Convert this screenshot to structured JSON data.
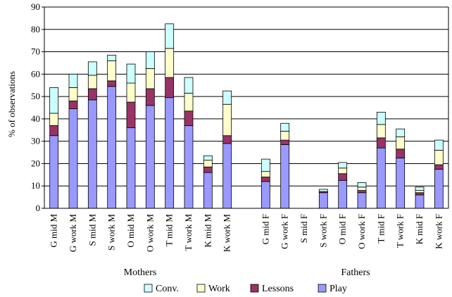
{
  "chart_data": {
    "type": "bar",
    "stacked": true,
    "ylabel": "% of observations",
    "ylim": [
      0,
      90
    ],
    "yticks": [
      0,
      10,
      20,
      30,
      40,
      50,
      60,
      70,
      80,
      90
    ],
    "grid": "horizontal",
    "legend_position": "bottom",
    "groups": [
      "Mothers",
      "Fathers"
    ],
    "categories": [
      "G mid M",
      "G work M",
      "S mid M",
      "S work M",
      "O mid M",
      "O work M",
      "T mid M",
      "T work M",
      "K mid M",
      "K work M",
      "",
      "G mid F",
      "G work F",
      "S mid F",
      "S work F",
      "O mid F",
      "O work F",
      "T mid F",
      "T work F",
      "K mid F",
      "K work F"
    ],
    "category_groups": [
      0,
      0,
      0,
      0,
      0,
      0,
      0,
      0,
      0,
      0,
      null,
      1,
      1,
      1,
      1,
      1,
      1,
      1,
      1,
      1,
      1
    ],
    "series": [
      {
        "name": "Play",
        "color": "#9999ff",
        "values": [
          32.5,
          44.5,
          48.5,
          54.5,
          36,
          46,
          49.5,
          37,
          16,
          29,
          null,
          12,
          28.5,
          0,
          7,
          12.5,
          7,
          27,
          22.5,
          6,
          17.5
        ]
      },
      {
        "name": "Lessons",
        "color": "#993366",
        "values": [
          4.5,
          3.5,
          5,
          2.5,
          11.5,
          7.5,
          9,
          6.5,
          2.5,
          3.5,
          null,
          2,
          2,
          0,
          0.5,
          3,
          1,
          4.5,
          4,
          1,
          2
        ]
      },
      {
        "name": "Work",
        "color": "#ffffcc",
        "values": [
          5.5,
          6,
          6,
          9,
          8.5,
          9,
          13,
          8,
          3,
          14,
          null,
          2.5,
          4,
          0,
          0,
          2.5,
          1.5,
          6,
          5.5,
          1,
          6.5
        ]
      },
      {
        "name": "Conv.",
        "color": "#ccffff",
        "values": [
          11.5,
          6,
          6,
          2.5,
          8.5,
          7.5,
          11,
          7,
          2,
          6,
          null,
          5.5,
          3.5,
          0,
          1,
          2.5,
          2,
          5.5,
          3.5,
          1.5,
          4.5
        ]
      }
    ]
  },
  "legend": [
    {
      "label": "Conv.",
      "color": "#ccffff"
    },
    {
      "label": "Work",
      "color": "#ffffcc"
    },
    {
      "label": "Lessons",
      "color": "#993366"
    },
    {
      "label": "Play",
      "color": "#9999ff"
    }
  ]
}
